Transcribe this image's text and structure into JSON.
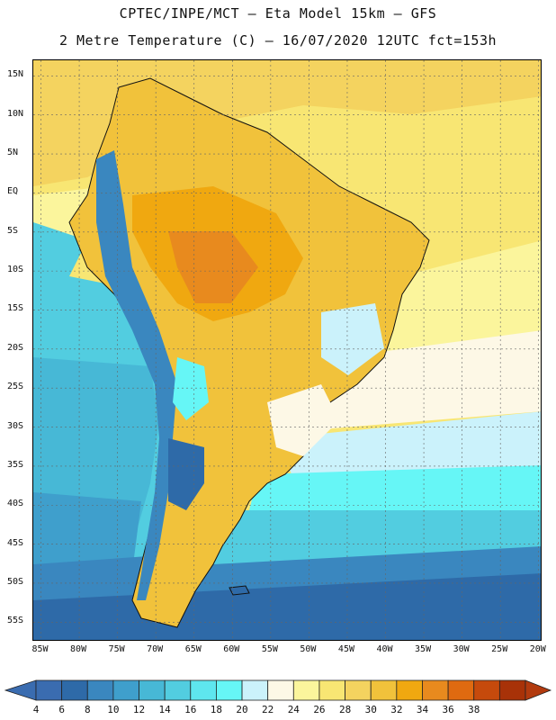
{
  "header": {
    "line1": "CPTEC/INPE/MCT –  Eta Model 15km – GFS",
    "line2": "2 Metre Temperature (C) – 16/07/2020 12UTC fct=153h"
  },
  "map": {
    "lat_labels": [
      "15N",
      "10N",
      "5N",
      "EQ",
      "5S",
      "10S",
      "15S",
      "20S",
      "25S",
      "30S",
      "35S",
      "40S",
      "45S",
      "50S",
      "55S"
    ],
    "lon_labels": [
      "85W",
      "80W",
      "75W",
      "70W",
      "65W",
      "60W",
      "55W",
      "50W",
      "45W",
      "40W",
      "35W",
      "30W",
      "25W",
      "20W"
    ],
    "extent": {
      "lon_min": -86,
      "lon_max": -19.5,
      "lat_min": -57.5,
      "lat_max": 17
    }
  },
  "colorbar": {
    "labels": [
      "4",
      "6",
      "8",
      "10",
      "12",
      "14",
      "16",
      "18",
      "20",
      "22",
      "24",
      "26",
      "28",
      "30",
      "32",
      "34",
      "36",
      "38"
    ],
    "colors": [
      "#3a6cb0",
      "#2e6aa8",
      "#3a87bf",
      "#3f9fcc",
      "#47b8d6",
      "#52cde0",
      "#5ee6ee",
      "#66f6f6",
      "#cbf2fb",
      "#fdf8e6",
      "#fbf59c",
      "#f8e673",
      "#f4d35f",
      "#f1c23b",
      "#f0a810",
      "#e88a1e",
      "#df6a10",
      "#c64a0c",
      "#a83208"
    ],
    "low_color": "#3a6cb0",
    "high_color": "#b23a0e"
  }
}
